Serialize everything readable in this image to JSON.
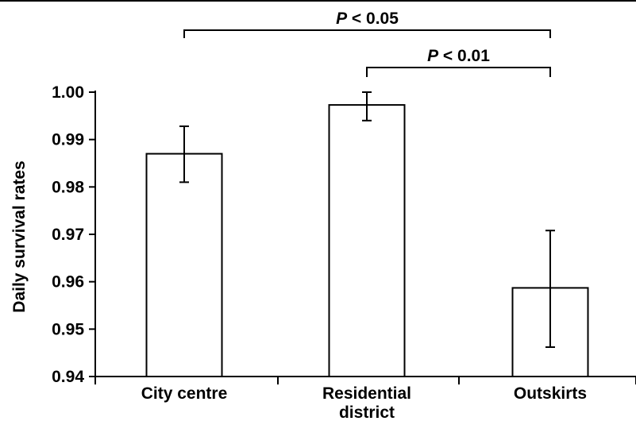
{
  "chart_data": {
    "type": "bar",
    "title": "",
    "xlabel": "",
    "ylabel": "Daily survival rates",
    "categories": [
      [
        "City centre"
      ],
      [
        "Residential",
        "district"
      ],
      [
        "Outskirts"
      ]
    ],
    "values": [
      0.987,
      0.9973,
      0.9587
    ],
    "error_low": [
      0.981,
      0.994,
      0.9462
    ],
    "error_high": [
      0.9928,
      1.0,
      0.9708
    ],
    "ylim": [
      0.94,
      1.0
    ],
    "yticks": [
      0.94,
      0.95,
      0.96,
      0.97,
      0.98,
      0.99,
      1.0
    ],
    "ytick_labels": [
      "0.94",
      "0.95",
      "0.96",
      "0.97",
      "0.98",
      "0.99",
      "1.00"
    ],
    "bar_fill": "#ffffff",
    "bar_stroke": "#000000",
    "grid": false,
    "significance": [
      {
        "from": 0,
        "to": 2,
        "italic": "P",
        "text": " < 0.05"
      },
      {
        "from": 1,
        "to": 2,
        "italic": "P",
        "text": " < 0.01"
      }
    ]
  }
}
